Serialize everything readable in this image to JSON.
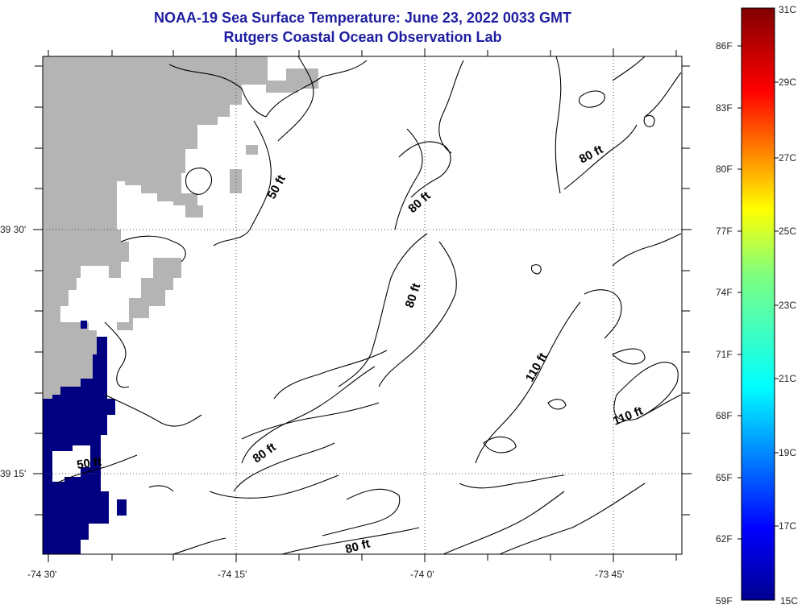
{
  "title": "NOAA-19 Sea Surface Temperature:  June 23, 2022 0033 GMT",
  "subtitle": "Rutgers Coastal Ocean Observation Lab",
  "x_ticks": [
    "-74 30'",
    "-74 15'",
    "-74 0'",
    "-73 45'"
  ],
  "y_ticks": [
    "39 30'",
    "39 15'"
  ],
  "depth_labels": [
    "50 ft",
    "50 ft",
    "80 ft",
    "80 ft",
    "80 ft",
    "80 ft",
    "80 ft",
    "110 ft",
    "110 ft"
  ],
  "colorbar": {
    "fahrenheit": [
      "86F",
      "83F",
      "80F",
      "77F",
      "74F",
      "71F",
      "68F",
      "65F",
      "62F",
      "59F"
    ],
    "celsius": [
      "31C",
      "29C",
      "27C",
      "25C",
      "23C",
      "21C",
      "19C",
      "17C",
      "15C"
    ]
  },
  "colors": {
    "title": "#1e1ea0",
    "land": "#b4b4b4",
    "cold_water": "#000080",
    "contour": "#000000"
  }
}
